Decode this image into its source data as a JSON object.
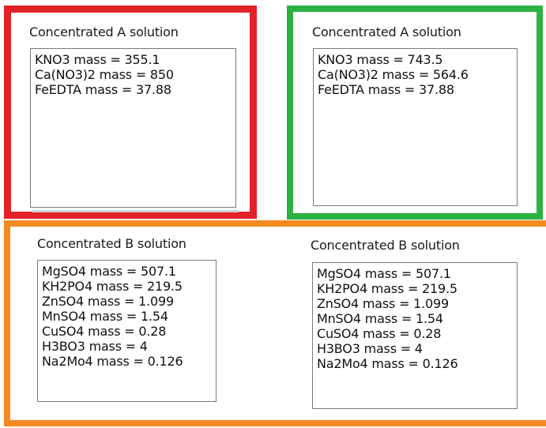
{
  "panel_a_left": {
    "title": "Concentrated A solution",
    "lines": [
      "KNO3 mass = 355.1",
      "Ca(NO3)2 mass = 850",
      "FeEDTA mass = 37.88"
    ]
  },
  "panel_a_right": {
    "title": "Concentrated A solution",
    "lines": [
      "KNO3 mass = 743.5",
      "Ca(NO3)2 mass = 564.6",
      "FeEDTA mass = 37.88"
    ]
  },
  "panel_b_left": {
    "title": "Concentrated B solution",
    "lines": [
      "MgSO4 mass = 507.1",
      "KH2PO4 mass = 219.5",
      "ZnSO4 mass = 1.099",
      "MnSO4 mass = 1.54",
      "CuSO4 mass = 0.28",
      "H3BO3 mass = 4",
      "Na2Mo4 mass = 0.126"
    ]
  },
  "panel_b_right": {
    "title": "Concentrated B solution",
    "lines": [
      "MgSO4 mass = 507.1",
      "KH2PO4 mass = 219.5",
      "ZnSO4 mass = 1.099",
      "MnSO4 mass = 1.54",
      "CuSO4 mass = 0.28",
      "H3BO3 mass = 4",
      "Na2Mo4 mass = 0.126"
    ]
  },
  "colors": {
    "red_frame": "#e32228",
    "green_frame": "#2bb241",
    "orange_frame": "#f68a22"
  }
}
